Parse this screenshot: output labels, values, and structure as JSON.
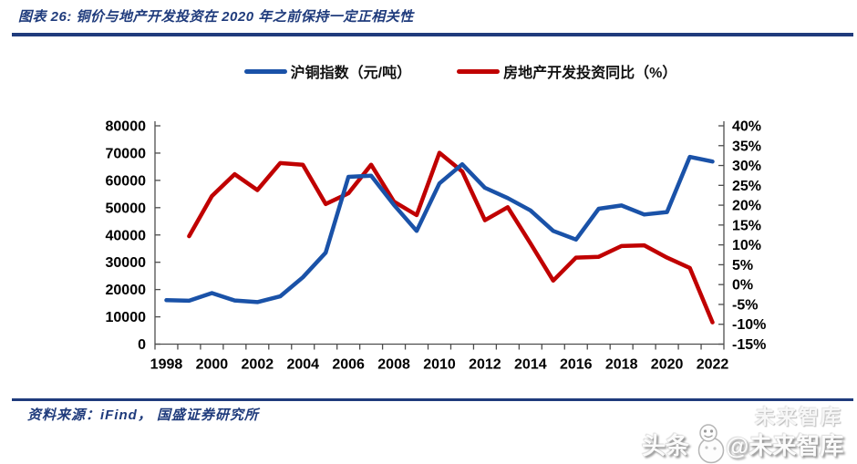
{
  "header": {
    "title": "图表 26:  铜价与地产开发投资在 2020 年之前保持一定正相关性"
  },
  "legend": {
    "copper_label": "沪铜指数（元/吨）",
    "housing_label": "房地产开发投资同比（%）"
  },
  "footer": {
    "source": "资料来源：iFind， 国盛证券研究所"
  },
  "watermark": {
    "prefix": "头条",
    "suffix": "@未来智库",
    "ghost": "未来智库"
  },
  "colors": {
    "navy": "#1F3B7C",
    "copper_line": "#1A52A8",
    "housing_line": "#C00000",
    "axis": "#4d4d4d",
    "tick_text": "#000000"
  },
  "chart_data": {
    "type": "line",
    "title": "",
    "x": [
      1998,
      1999,
      2000,
      2001,
      2002,
      2003,
      2004,
      2005,
      2006,
      2007,
      2008,
      2009,
      2010,
      2011,
      2012,
      2013,
      2014,
      2015,
      2016,
      2017,
      2018,
      2019,
      2020,
      2021,
      2022
    ],
    "x_tick_labels": [
      "1998",
      "2000",
      "2002",
      "2004",
      "2006",
      "2008",
      "2010",
      "2012",
      "2014",
      "2016",
      "2018",
      "2020",
      "2022"
    ],
    "series": [
      {
        "name": "沪铜指数（元/吨）",
        "axis": "left",
        "color": "#1A52A8",
        "values": [
          16100,
          15900,
          18700,
          16000,
          15400,
          17500,
          24500,
          33500,
          61300,
          61700,
          51000,
          41500,
          58900,
          65900,
          57300,
          53500,
          49000,
          41500,
          38300,
          49600,
          50800,
          47500,
          48400,
          68600,
          66900
        ]
      },
      {
        "name": "房地产开发投资同比（%）",
        "axis": "right",
        "color": "#C00000",
        "values": [
          null,
          12.2,
          22.3,
          27.8,
          23.8,
          30.6,
          30.2,
          20.3,
          23.0,
          30.2,
          20.9,
          17.5,
          33.2,
          28.5,
          16.2,
          19.5,
          10.4,
          1.0,
          6.8,
          7.0,
          9.7,
          9.9,
          6.8,
          4.2,
          -9.5
        ]
      }
    ],
    "left_axis": {
      "min": 0,
      "max": 80000,
      "step": 10000,
      "tick_labels": [
        "0",
        "10000",
        "20000",
        "30000",
        "40000",
        "50000",
        "60000",
        "70000",
        "80000"
      ]
    },
    "right_axis": {
      "min": -15,
      "max": 40,
      "step": 5,
      "tick_labels": [
        "-15%",
        "-10%",
        "-5%",
        "0%",
        "5%",
        "10%",
        "15%",
        "20%",
        "25%",
        "30%",
        "35%",
        "40%"
      ]
    },
    "grid": false,
    "legend_position": "top"
  }
}
